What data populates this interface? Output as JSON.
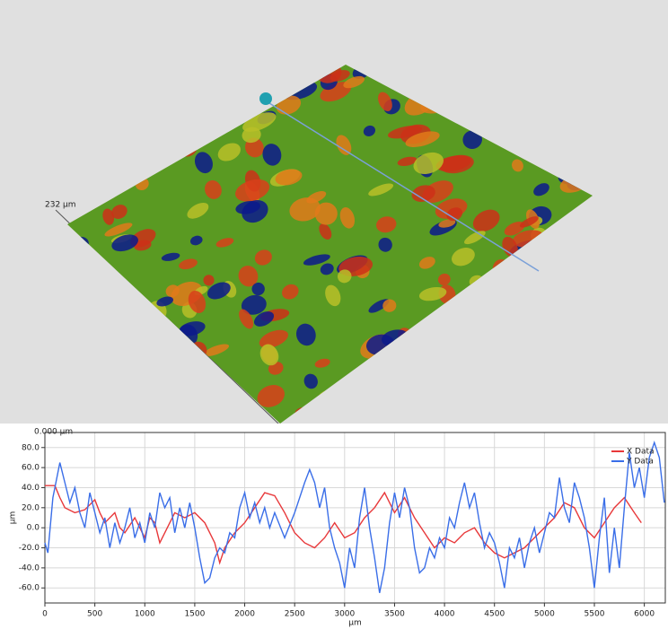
{
  "surface": {
    "labels": [
      "232 µm",
      "0.000 µm"
    ]
  },
  "chart_data": {
    "type": "line",
    "xlabel": "µm",
    "ylabel": "µm",
    "xlim": [
      0,
      6210
    ],
    "ylim": [
      -75,
      95
    ],
    "xticks": [
      0,
      500,
      1000,
      1500,
      2000,
      2500,
      3000,
      3500,
      4000,
      4500,
      5000,
      5500,
      6000
    ],
    "yticks": [
      {
        "value": -60,
        "label": "-60.0"
      },
      {
        "value": -40,
        "label": "-40.0"
      },
      {
        "value": -20,
        "label": "-20.0"
      },
      {
        "value": 0,
        "label": "0.0"
      },
      {
        "value": 20,
        "label": "20.0"
      },
      {
        "value": 40,
        "label": "40.0"
      },
      {
        "value": 60,
        "label": "60.0"
      },
      {
        "value": 80,
        "label": "80.0"
      }
    ],
    "grid": true,
    "legend": "top-right",
    "series": [
      {
        "name": "X Data",
        "color": "#e8383a",
        "x": [
          0,
          100,
          150,
          200,
          300,
          400,
          500,
          550,
          600,
          700,
          750,
          800,
          900,
          950,
          1000,
          1050,
          1100,
          1150,
          1200,
          1300,
          1400,
          1500,
          1600,
          1700,
          1750,
          1800,
          1900,
          2000,
          2100,
          2200,
          2300,
          2400,
          2500,
          2600,
          2700,
          2800,
          2900,
          3000,
          3100,
          3200,
          3300,
          3400,
          3500,
          3600,
          3700,
          3800,
          3900,
          4000,
          4100,
          4200,
          4300,
          4400,
          4500,
          4600,
          4700,
          4800,
          4900,
          5000,
          5100,
          5200,
          5300,
          5400,
          5500,
          5600,
          5700,
          5800,
          5900,
          5970
        ],
        "values": [
          42,
          42,
          30,
          20,
          15,
          18,
          28,
          15,
          5,
          15,
          0,
          -5,
          10,
          0,
          -10,
          10,
          5,
          -15,
          -5,
          15,
          10,
          15,
          5,
          -15,
          -35,
          -20,
          -5,
          5,
          20,
          35,
          32,
          15,
          -5,
          -15,
          -20,
          -10,
          5,
          -10,
          -5,
          10,
          20,
          35,
          15,
          30,
          10,
          -5,
          -20,
          -10,
          -15,
          -5,
          0,
          -15,
          -25,
          -30,
          -25,
          -20,
          -10,
          0,
          10,
          25,
          20,
          0,
          -10,
          5,
          20,
          30,
          15,
          5
        ]
      },
      {
        "name": "Y Data",
        "color": "#3a6ee8",
        "x": [
          0,
          30,
          80,
          150,
          200,
          250,
          300,
          350,
          400,
          450,
          500,
          550,
          600,
          650,
          700,
          750,
          800,
          850,
          900,
          950,
          1000,
          1050,
          1100,
          1150,
          1200,
          1250,
          1300,
          1350,
          1400,
          1450,
          1500,
          1550,
          1600,
          1650,
          1700,
          1750,
          1800,
          1850,
          1900,
          1950,
          2000,
          2050,
          2100,
          2150,
          2200,
          2250,
          2300,
          2400,
          2500,
          2600,
          2650,
          2700,
          2750,
          2800,
          2850,
          2900,
          2950,
          3000,
          3050,
          3100,
          3150,
          3200,
          3250,
          3300,
          3350,
          3400,
          3450,
          3500,
          3550,
          3600,
          3650,
          3700,
          3750,
          3800,
          3850,
          3900,
          3950,
          4000,
          4050,
          4100,
          4150,
          4200,
          4250,
          4300,
          4350,
          4400,
          4450,
          4500,
          4550,
          4600,
          4650,
          4700,
          4750,
          4800,
          4850,
          4900,
          4950,
          5000,
          5050,
          5100,
          5150,
          5200,
          5250,
          5300,
          5350,
          5400,
          5450,
          5500,
          5550,
          5600,
          5650,
          5700,
          5750,
          5800,
          5850,
          5900,
          5950,
          6000,
          6050,
          6100,
          6150,
          6200
        ],
        "values": [
          -15,
          -25,
          30,
          65,
          45,
          25,
          40,
          15,
          0,
          35,
          15,
          -5,
          10,
          -20,
          5,
          -15,
          0,
          20,
          -10,
          5,
          -15,
          15,
          0,
          35,
          20,
          30,
          -5,
          20,
          0,
          25,
          0,
          -30,
          -55,
          -50,
          -30,
          -20,
          -25,
          -5,
          -10,
          20,
          35,
          10,
          25,
          5,
          20,
          0,
          15,
          -10,
          15,
          45,
          58,
          45,
          20,
          40,
          0,
          -20,
          -35,
          -60,
          -20,
          -40,
          10,
          40,
          0,
          -30,
          -65,
          -40,
          5,
          35,
          10,
          40,
          20,
          -20,
          -45,
          -40,
          -20,
          -30,
          -10,
          -20,
          10,
          0,
          25,
          45,
          20,
          35,
          5,
          -20,
          -5,
          -15,
          -35,
          -60,
          -20,
          -30,
          -10,
          -40,
          -15,
          0,
          -25,
          -5,
          15,
          10,
          50,
          20,
          5,
          45,
          30,
          10,
          -20,
          -60,
          -10,
          30,
          -45,
          0,
          -40,
          20,
          75,
          40,
          60,
          30,
          70,
          85,
          70,
          25
        ]
      }
    ]
  }
}
